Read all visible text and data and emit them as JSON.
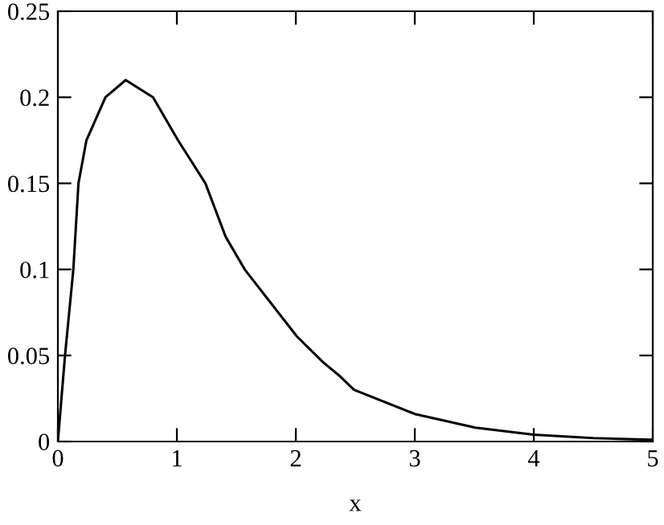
{
  "chart_data": {
    "type": "line",
    "xlabel": "x",
    "x": [
      0,
      0.03,
      0.06,
      0.13,
      0.173,
      0.24,
      0.4,
      0.57,
      0.8,
      1.01,
      1.24,
      1.41,
      1.57,
      2.01,
      2.23,
      2.37,
      2.49,
      3.0,
      3.51,
      4.0,
      4.5,
      5.0
    ],
    "series": [
      {
        "color": "#000000",
        "values": [
          0,
          0.025,
          0.05,
          0.1,
          0.15,
          0.175,
          0.2,
          0.21,
          0.2,
          0.175,
          0.15,
          0.119,
          0.1,
          0.061,
          0.046,
          0.038,
          0.03,
          0.016,
          0.008,
          0.004,
          0.002,
          0.001
        ]
      }
    ],
    "xlim": [
      0,
      5
    ],
    "ylim": [
      0,
      0.25
    ],
    "xticks": [
      0,
      1,
      2,
      3,
      4,
      5
    ],
    "yticks": [
      0,
      0.05,
      0.1,
      0.15,
      0.2,
      0.25
    ],
    "grid": false,
    "legend": false,
    "marker": "none",
    "line_style": "solid"
  }
}
